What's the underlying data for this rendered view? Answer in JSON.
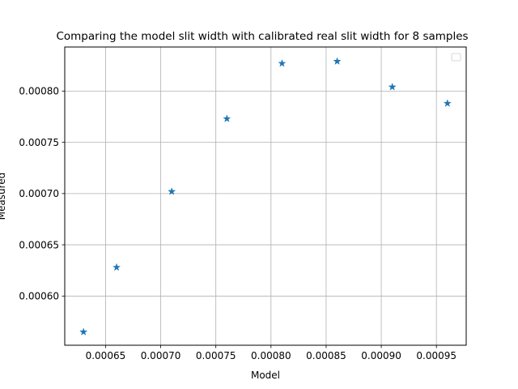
{
  "chart_data": {
    "type": "scatter",
    "title": "Comparing the model slit width with calibrated real slit width for 8 samples",
    "xlabel": "Model",
    "ylabel": "Measured",
    "xlim": [
      0.000613,
      0.000977
    ],
    "ylim": [
      0.000552,
      0.000843
    ],
    "xticks": [
      "0.00065",
      "0.00070",
      "0.00075",
      "0.00080",
      "0.00085",
      "0.00090",
      "0.00095"
    ],
    "xtick_values": [
      0.00065,
      0.0007,
      0.00075,
      0.0008,
      0.00085,
      0.0009,
      0.00095
    ],
    "yticks": [
      "0.00060",
      "0.00065",
      "0.00070",
      "0.00075",
      "0.00080"
    ],
    "ytick_values": [
      0.0006,
      0.00065,
      0.0007,
      0.00075,
      0.0008
    ],
    "grid": true,
    "legend": "top-right (empty)",
    "marker": "star",
    "color": "#1f77b4",
    "series": [
      {
        "x": [
          0.00063,
          0.00066,
          0.00071,
          0.00076,
          0.00081,
          0.00086,
          0.00091,
          0.00096
        ],
        "y": [
          0.000565,
          0.000628,
          0.000702,
          0.000773,
          0.000827,
          0.000829,
          0.000804,
          0.000788
        ]
      }
    ]
  }
}
